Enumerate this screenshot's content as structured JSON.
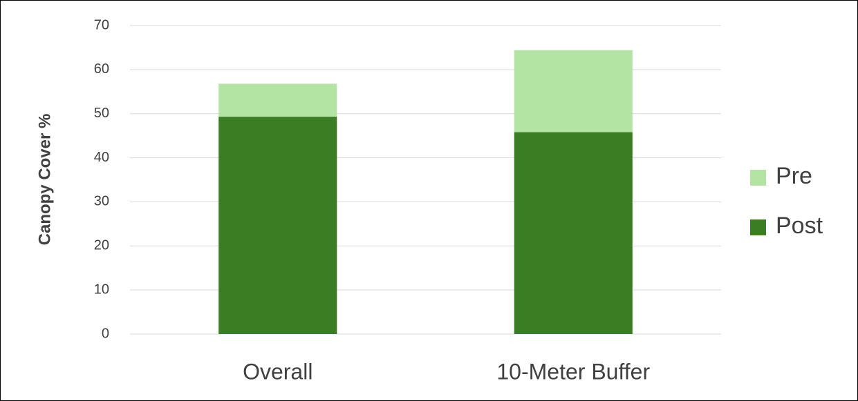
{
  "chart_data": {
    "type": "bar",
    "barmode": "overlay",
    "ylabel": "Canopy Cover  %",
    "categories": [
      "Overall",
      "10-Meter Buffer"
    ],
    "series": [
      {
        "name": "Pre",
        "color": "#b3e4a3",
        "values": [
          56.8,
          64.4
        ]
      },
      {
        "name": "Post",
        "color": "#3a7d23",
        "values": [
          49.3,
          45.8
        ]
      }
    ],
    "ylim": [
      0,
      70
    ],
    "yticks": [
      0,
      10,
      20,
      30,
      40,
      50,
      60,
      70
    ],
    "grid": true,
    "legend": "right"
  }
}
